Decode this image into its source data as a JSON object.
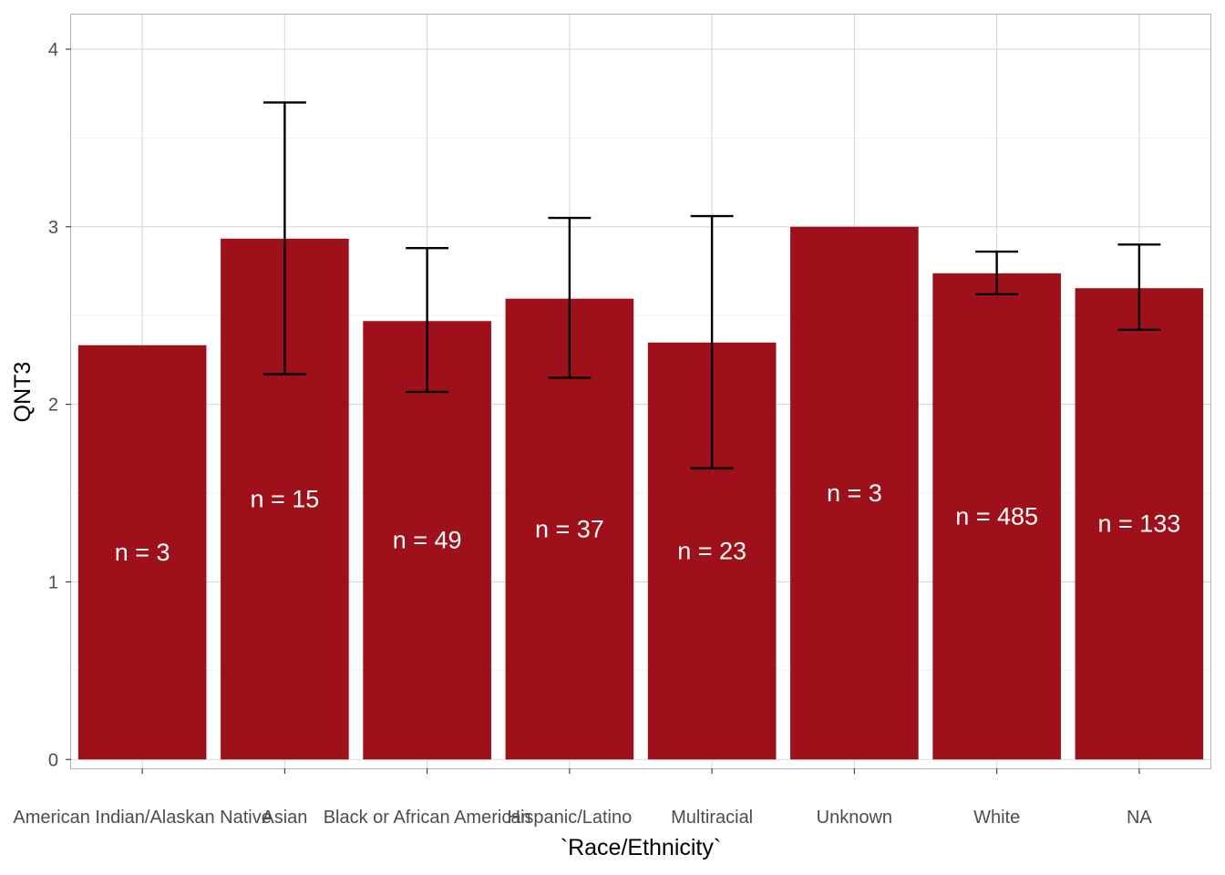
{
  "chart_data": {
    "type": "bar",
    "title": "",
    "xlabel": "`Race/Ethnicity`",
    "ylabel": "QNT3",
    "categories": [
      "American Indian/Alaskan Native",
      "Asian",
      "Black or African American",
      "Hispanic/Latino",
      "Multiracial",
      "Unknown",
      "White",
      "NA"
    ],
    "values": [
      2.333,
      2.933,
      2.469,
      2.595,
      2.348,
      3.0,
      2.738,
      2.654
    ],
    "error_bars": [
      null,
      [
        2.17,
        3.7
      ],
      [
        2.07,
        2.88
      ],
      [
        2.15,
        3.05
      ],
      [
        1.64,
        3.06
      ],
      null,
      [
        2.62,
        2.86
      ],
      [
        2.42,
        2.9
      ]
    ],
    "bar_labels": [
      "n = 3",
      "n = 15",
      "n = 49",
      "n = 37",
      "n = 23",
      "n = 3",
      "n = 485",
      "n = 133"
    ],
    "ylim": [
      -0.05,
      4.2
    ],
    "yticks": [
      "0",
      "1",
      "2",
      "3",
      "4"
    ],
    "grid": true,
    "legend": "none",
    "colors": {
      "bar": "#9e111b",
      "panel_border": "#b3b3b3",
      "grid_major": "#d9d9d9",
      "grid_minor": "#ebebeb",
      "errorbar": "#000000",
      "bar_label": "#ffffff"
    }
  }
}
